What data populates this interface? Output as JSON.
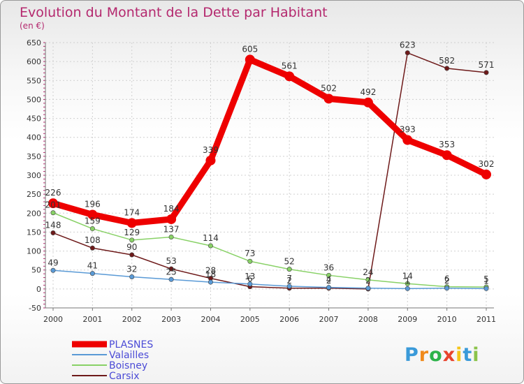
{
  "chart_data": {
    "type": "line",
    "title": "Evolution du Montant de la Dette par Habitant",
    "subtitle": "(en €)",
    "xlabel": "",
    "ylabel": "",
    "x": [
      "2000",
      "2001",
      "2002",
      "2003",
      "2004",
      "2005",
      "2006",
      "2007",
      "2008",
      "2009",
      "2010",
      "2011"
    ],
    "ylim": [
      -50,
      650
    ],
    "yticks": [
      -50,
      0,
      50,
      100,
      150,
      200,
      250,
      300,
      350,
      400,
      450,
      500,
      550,
      600,
      650
    ],
    "grid": true,
    "legend_position": "bottom-left",
    "series": [
      {
        "name": "Carsix",
        "color": "#6e1a1a",
        "values": [
          148,
          108,
          90,
          53,
          28,
          6,
          2,
          2,
          0,
          623,
          582,
          571
        ],
        "labels": [
          "148",
          "108",
          "90",
          "53",
          "28",
          "6",
          "2",
          "2",
          "",
          "623",
          "582",
          "571"
        ]
      },
      {
        "name": "Boisney",
        "color": "#88d166",
        "values": [
          201,
          159,
          129,
          137,
          114,
          73,
          52,
          36,
          24,
          14,
          6,
          5
        ],
        "labels": [
          "201",
          "159",
          "129",
          "137",
          "114",
          "73",
          "52",
          "36",
          "24",
          "14",
          "6",
          "5"
        ]
      },
      {
        "name": "Valailles",
        "color": "#5a9ad6",
        "values": [
          49,
          41,
          32,
          25,
          18,
          13,
          7,
          4,
          2,
          1,
          2,
          1
        ],
        "labels": [
          "49",
          "41",
          "32",
          "25",
          "18",
          "13",
          "7",
          "4",
          "2",
          "1",
          "2",
          "1"
        ]
      },
      {
        "name": "PLASNES",
        "color": "#ee0000",
        "values": [
          226,
          196,
          174,
          184,
          339,
          605,
          561,
          502,
          492,
          393,
          353,
          302
        ],
        "labels": [
          "226",
          "196",
          "174",
          "184",
          "339",
          "605",
          "561",
          "502",
          "492",
          "393",
          "353",
          "302"
        ]
      }
    ],
    "legend": [
      {
        "name": "PLASNES",
        "color": "#ee0000",
        "thickness": "thick"
      },
      {
        "name": "Valailles",
        "color": "#5a9ad6",
        "thickness": "thin"
      },
      {
        "name": "Boisney",
        "color": "#88d166",
        "thickness": "thin"
      },
      {
        "name": "Carsix",
        "color": "#6e1a1a",
        "thickness": "thin"
      }
    ]
  },
  "logo": {
    "letters": [
      "P",
      "r",
      "o",
      "x",
      "i",
      "t",
      "i"
    ],
    "colors": [
      "#3a9ad9",
      "#f08a1c",
      "#2db34a",
      "#e8432d",
      "#f5c518",
      "#3a9ad9",
      "#8bc34a"
    ]
  }
}
